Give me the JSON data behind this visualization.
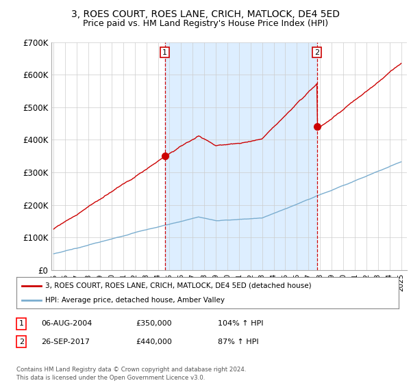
{
  "title": "3, ROES COURT, ROES LANE, CRICH, MATLOCK, DE4 5ED",
  "subtitle": "Price paid vs. HM Land Registry's House Price Index (HPI)",
  "ylim": [
    0,
    700000
  ],
  "yticks": [
    0,
    100000,
    200000,
    300000,
    400000,
    500000,
    600000,
    700000
  ],
  "ytick_labels": [
    "£0",
    "£100K",
    "£200K",
    "£300K",
    "£400K",
    "£500K",
    "£600K",
    "£700K"
  ],
  "xlim_start": 1994.8,
  "xlim_end": 2025.5,
  "xtick_years": [
    1995,
    1996,
    1997,
    1998,
    1999,
    2000,
    2001,
    2002,
    2003,
    2004,
    2005,
    2006,
    2007,
    2008,
    2009,
    2010,
    2011,
    2012,
    2013,
    2014,
    2015,
    2016,
    2017,
    2018,
    2019,
    2020,
    2021,
    2022,
    2023,
    2024,
    2025
  ],
  "sale1_x": 2004.6,
  "sale1_y": 350000,
  "sale2_x": 2017.73,
  "sale2_y": 440000,
  "red_line_color": "#cc0000",
  "blue_line_color": "#7aadcf",
  "shade_color": "#ddeeff",
  "vline_color": "#cc0000",
  "grid_color": "#cccccc",
  "bg_color": "#ffffff",
  "legend_label_red": "3, ROES COURT, ROES LANE, CRICH, MATLOCK, DE4 5ED (detached house)",
  "legend_label_blue": "HPI: Average price, detached house, Amber Valley",
  "table_row1": [
    "1",
    "06-AUG-2004",
    "£350,000",
    "104% ↑ HPI"
  ],
  "table_row2": [
    "2",
    "26-SEP-2017",
    "£440,000",
    "87% ↑ HPI"
  ],
  "footer": "Contains HM Land Registry data © Crown copyright and database right 2024.\nThis data is licensed under the Open Government Licence v3.0.",
  "title_fontsize": 10,
  "subtitle_fontsize": 9
}
